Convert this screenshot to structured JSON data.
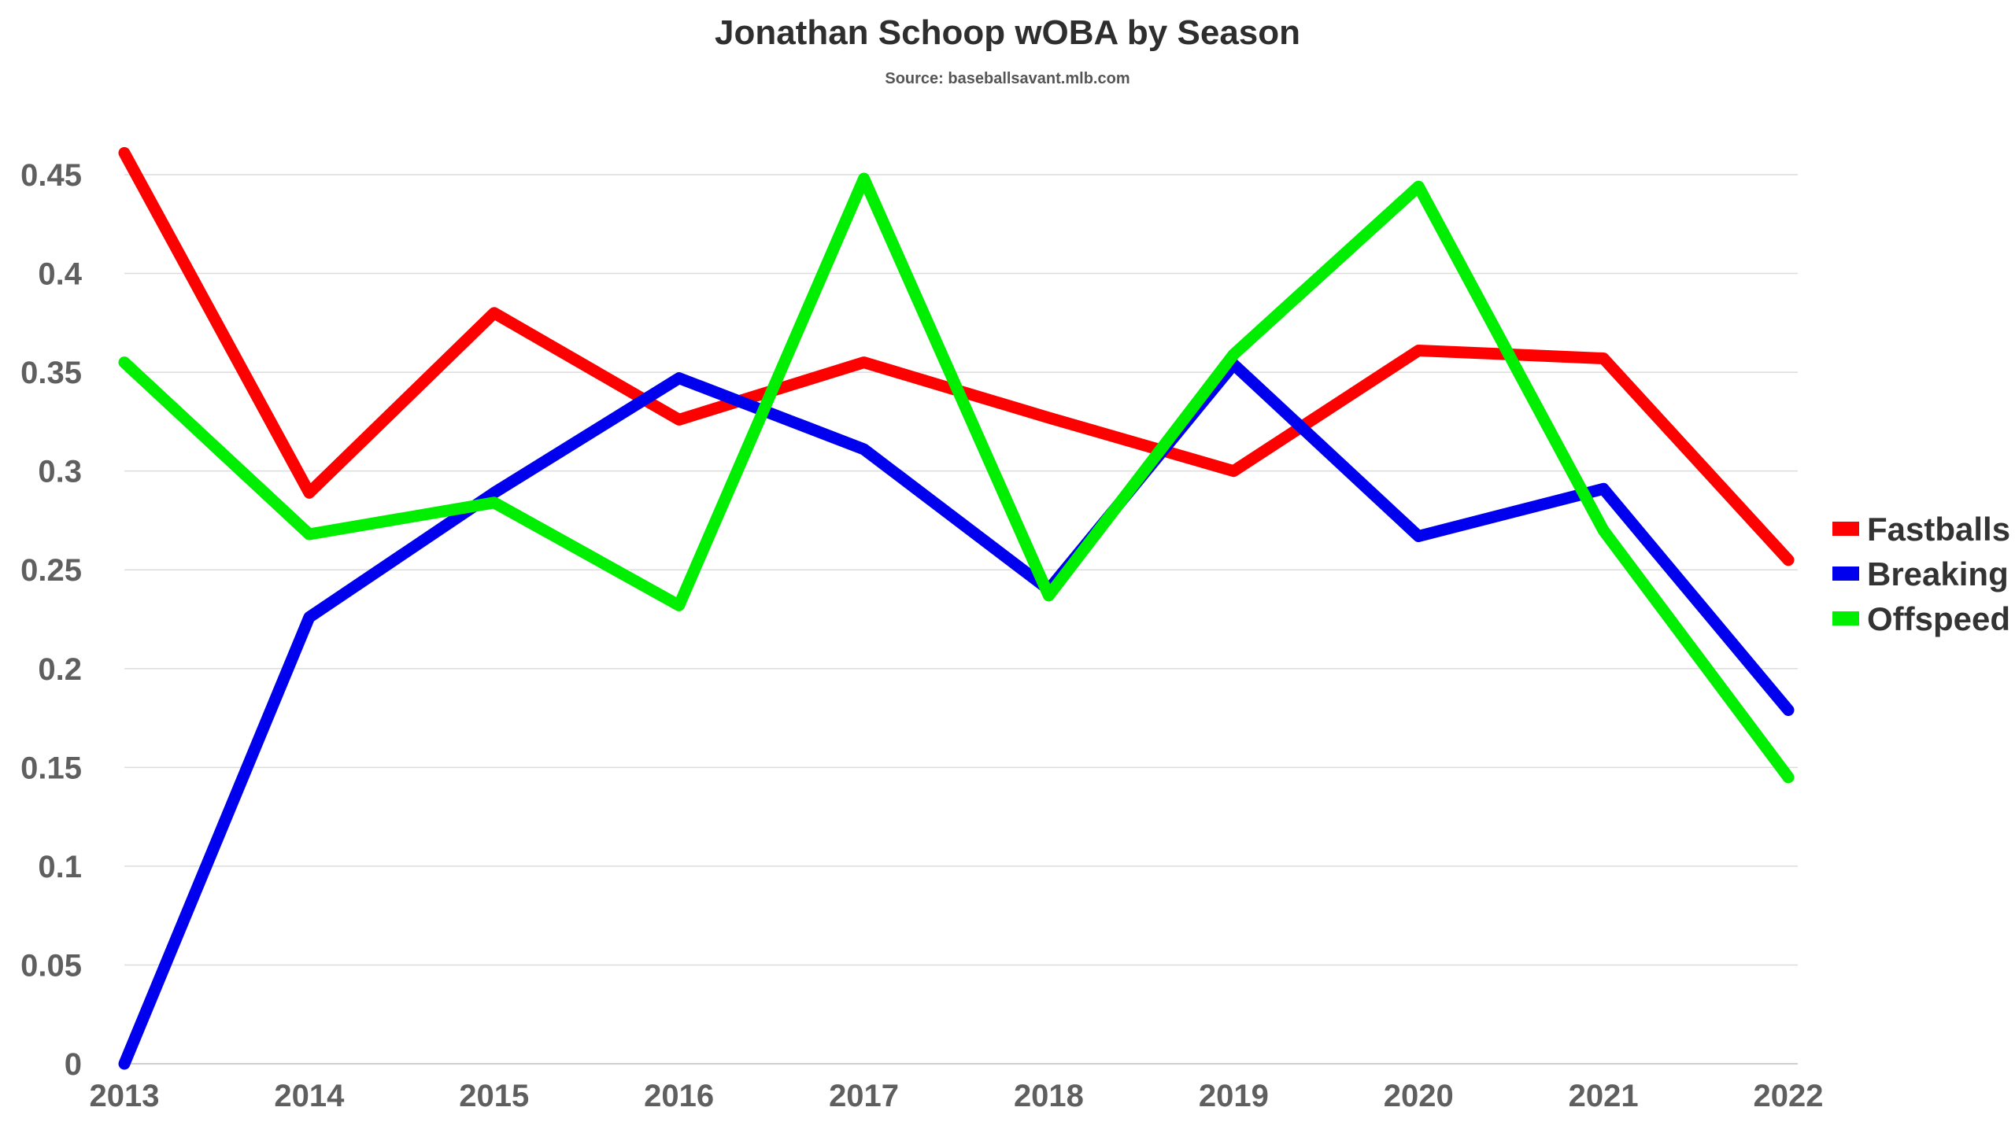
{
  "chart_data": {
    "type": "line",
    "title": "Jonathan Schoop wOBA by Season",
    "subtitle": "Source: baseballsavant.mlb.com",
    "xlabel": "",
    "ylabel": "",
    "categories": [
      "2013",
      "2014",
      "2015",
      "2016",
      "2017",
      "2018",
      "2019",
      "2020",
      "2021",
      "2022"
    ],
    "ylim": [
      0,
      0.45
    ],
    "yticks": [
      "0",
      "0.05",
      "0.1",
      "0.15",
      "0.2",
      "0.25",
      "0.3",
      "0.35",
      "0.4",
      "0.45"
    ],
    "grid": true,
    "legend_position": "right",
    "series": [
      {
        "name": "Fastballs",
        "color": "#ff0000",
        "values": [
          0.461,
          0.289,
          0.38,
          0.326,
          0.355,
          0.327,
          0.3,
          0.361,
          0.357,
          0.255
        ]
      },
      {
        "name": "Breaking",
        "color": "#0000ee",
        "values": [
          0.0,
          0.226,
          0.289,
          0.347,
          0.311,
          0.24,
          0.354,
          0.267,
          0.291,
          0.179
        ]
      },
      {
        "name": "Offspeed",
        "color": "#00ee00",
        "values": [
          0.355,
          0.268,
          0.284,
          0.232,
          0.448,
          0.237,
          0.359,
          0.444,
          0.27,
          0.145
        ]
      }
    ]
  }
}
